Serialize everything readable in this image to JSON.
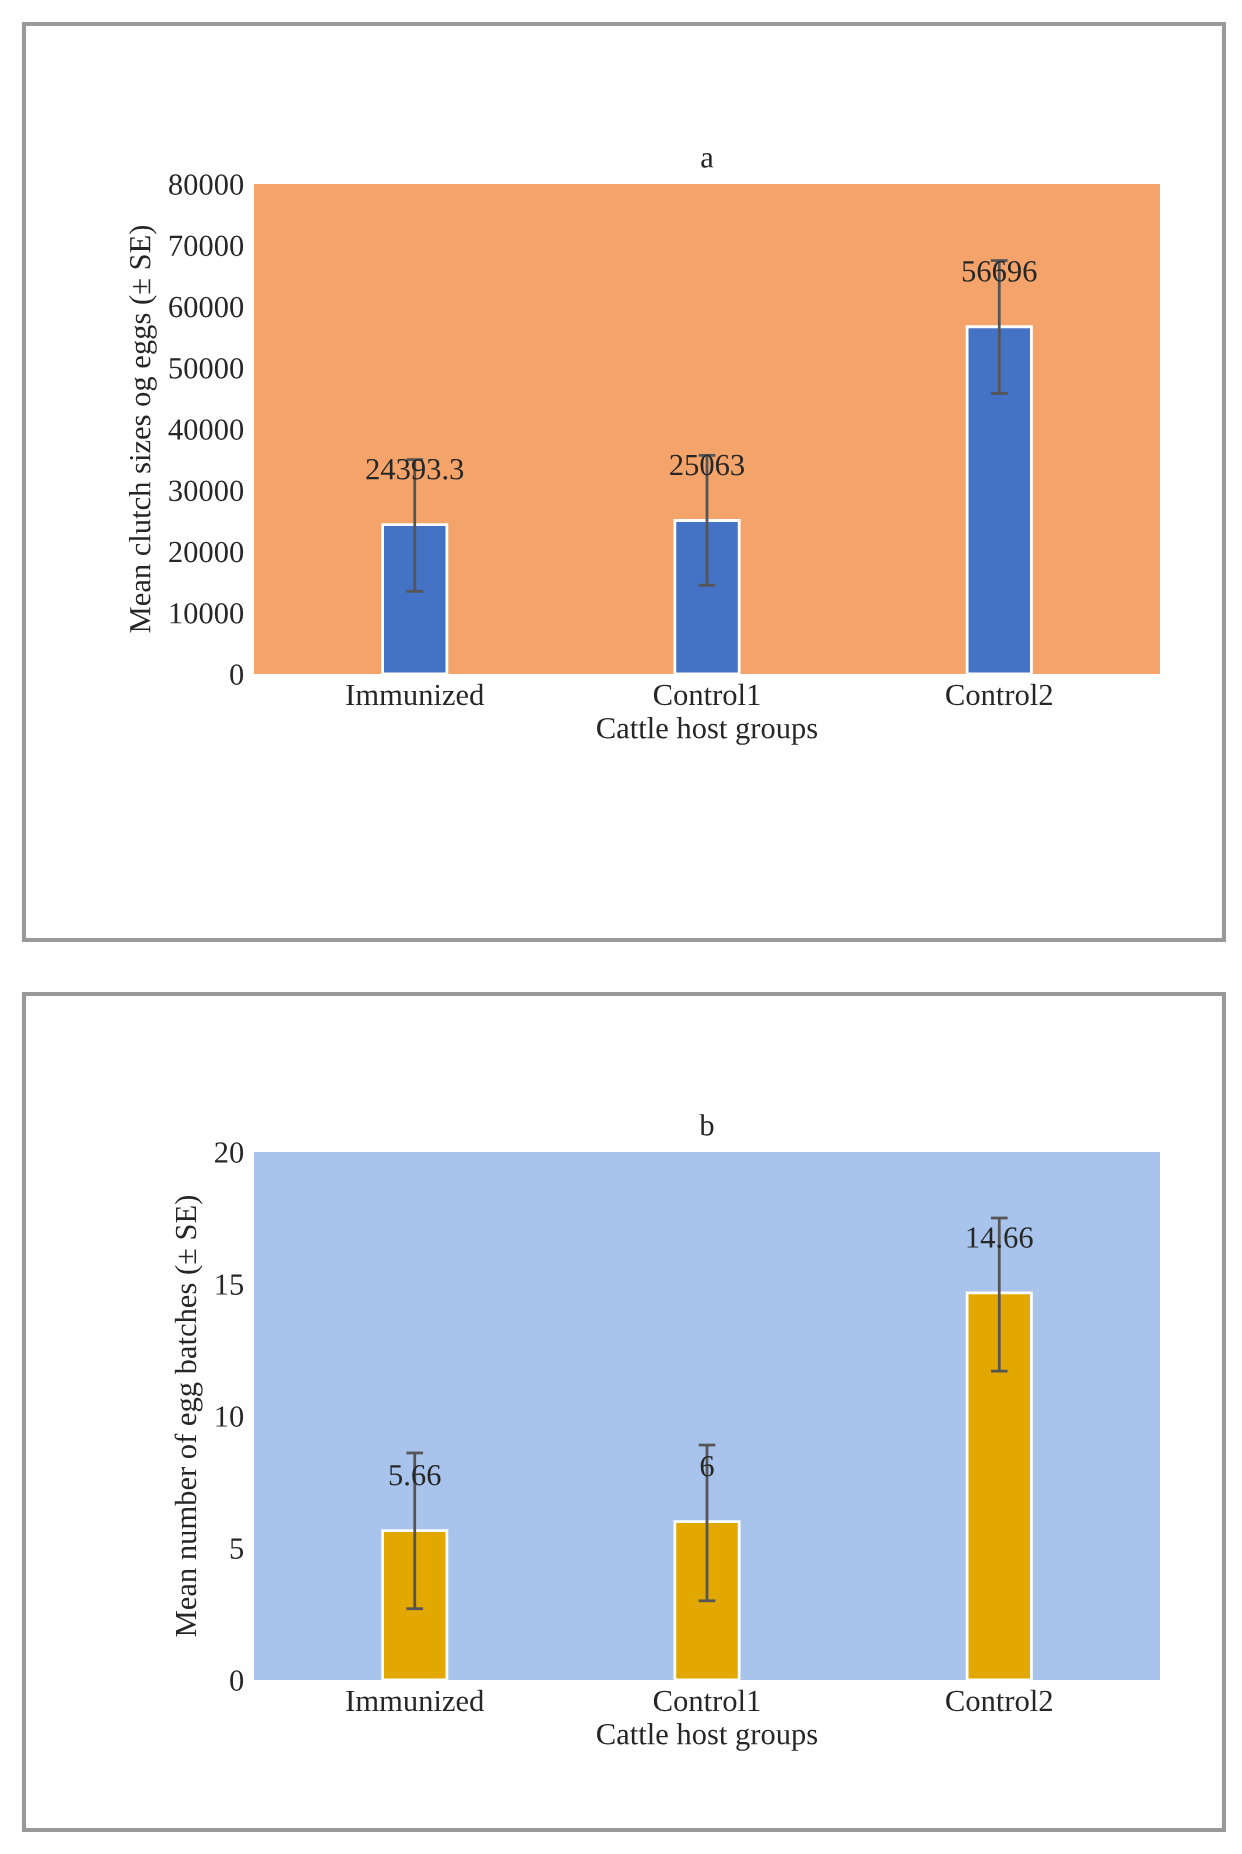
{
  "chart_data": [
    {
      "type": "bar",
      "title": "a",
      "xlabel": "Cattle host groups",
      "ylabel": "Mean clutch sizes og eggs (± SE)",
      "categories": [
        "Immunized",
        "Control1",
        "Control2"
      ],
      "values": [
        24393.3,
        25063,
        56696
      ],
      "color": "#4472c4",
      "errors": [
        [
          13500,
          35000
        ],
        [
          14500,
          35700
        ],
        [
          45800,
          67500
        ]
      ],
      "ylim": [
        0,
        80000
      ],
      "yticks": [
        0,
        10000,
        20000,
        30000,
        40000,
        50000,
        60000,
        70000,
        80000
      ],
      "data_labels": true,
      "grid": false
    },
    {
      "type": "bar",
      "title": "b",
      "xlabel": "Cattle host groups",
      "ylabel": "Mean number of egg batches (± SE)",
      "categories": [
        "Immunized",
        "Control1",
        "Control2"
      ],
      "values": [
        5.66,
        6,
        14.66
      ],
      "color": "#e2a800",
      "errors": [
        [
          2.7,
          8.6
        ],
        [
          3.0,
          8.9
        ],
        [
          11.7,
          17.5
        ]
      ],
      "ylim": [
        0,
        20
      ],
      "yticks": [
        0,
        5,
        10,
        15,
        20
      ],
      "data_labels": true,
      "grid": false
    }
  ]
}
